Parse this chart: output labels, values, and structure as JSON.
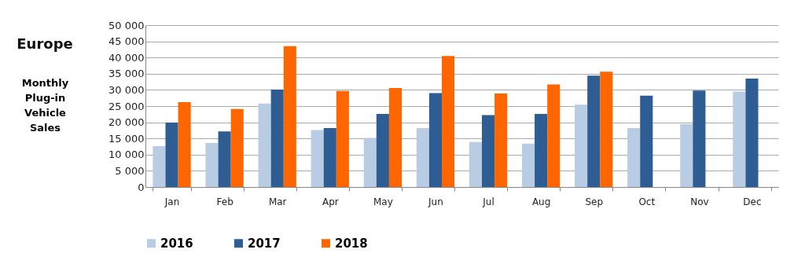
{
  "chart_data": {
    "type": "bar",
    "title": "Europe",
    "ylabel": "Monthly Plug-in Vehicle Sales",
    "categories": [
      "Jan",
      "Feb",
      "Mar",
      "Apr",
      "May",
      "Jun",
      "Jul",
      "Aug",
      "Sep",
      "Oct",
      "Nov",
      "Dec"
    ],
    "series": [
      {
        "name": "2016",
        "color": "#b8cce4",
        "values": [
          12600,
          13600,
          25800,
          17600,
          15200,
          18200,
          13900,
          13400,
          25400,
          18200,
          19400,
          29500
        ]
      },
      {
        "name": "2017",
        "color": "#2e5d94",
        "values": [
          19900,
          17200,
          30100,
          18200,
          22600,
          29000,
          22200,
          22600,
          34400,
          28200,
          29800,
          33500
        ]
      },
      {
        "name": "2018",
        "color": "#ff6600",
        "values": [
          26200,
          24100,
          43500,
          29700,
          30600,
          40500,
          28900,
          31700,
          35600,
          null,
          null,
          null
        ]
      }
    ],
    "ylim": [
      0,
      50000
    ],
    "yticks": [
      {
        "value": 0,
        "label": "0"
      },
      {
        "value": 5000,
        "label": "5 000"
      },
      {
        "value": 10000,
        "label": "10 000"
      },
      {
        "value": 15000,
        "label": "15 000"
      },
      {
        "value": 20000,
        "label": "20 000"
      },
      {
        "value": 25000,
        "label": "25 000"
      },
      {
        "value": 30000,
        "label": "30 000"
      },
      {
        "value": 35000,
        "label": "35 000"
      },
      {
        "value": 40000,
        "label": "40 000"
      },
      {
        "value": 45000,
        "label": "45 000"
      },
      {
        "value": 50000,
        "label": "50 000"
      }
    ],
    "grid": "y",
    "legend": "bottom"
  }
}
